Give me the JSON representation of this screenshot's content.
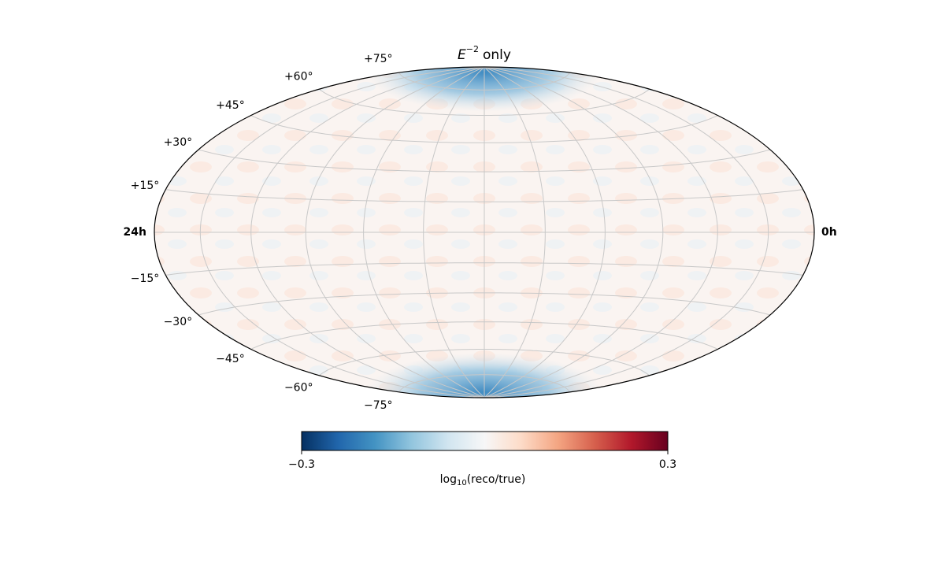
{
  "chart_data": {
    "type": "skymap",
    "projection": "hammer",
    "title_parts": [
      "E",
      "−2",
      "only"
    ],
    "lon_labels": [
      "24h",
      "0h"
    ],
    "lat_ticks": [
      {
        "value": 75,
        "label": "+75°"
      },
      {
        "value": 60,
        "label": "+60°"
      },
      {
        "value": 45,
        "label": "+45°"
      },
      {
        "value": 30,
        "label": "+30°"
      },
      {
        "value": 15,
        "label": "+15°"
      },
      {
        "value": -15,
        "label": "−15°"
      },
      {
        "value": -30,
        "label": "−30°"
      },
      {
        "value": -45,
        "label": "−45°"
      },
      {
        "value": -60,
        "label": "−60°"
      },
      {
        "value": -75,
        "label": "−75°"
      }
    ],
    "grid": true,
    "colorbar": {
      "label_parts": [
        "log",
        "10",
        "(reco/true)"
      ],
      "clim": [
        -0.3,
        0.3
      ],
      "cticks": [
        {
          "value": -0.3,
          "label": "−0.3"
        },
        0.3
      ],
      "colormap": [
        "#053061",
        "#2166ac",
        "#4393c3",
        "#92c5de",
        "#d1e5f0",
        "#f7f7f7",
        "#fddbc7",
        "#f4a582",
        "#d6604d",
        "#b2182b",
        "#67001f"
      ]
    }
  }
}
